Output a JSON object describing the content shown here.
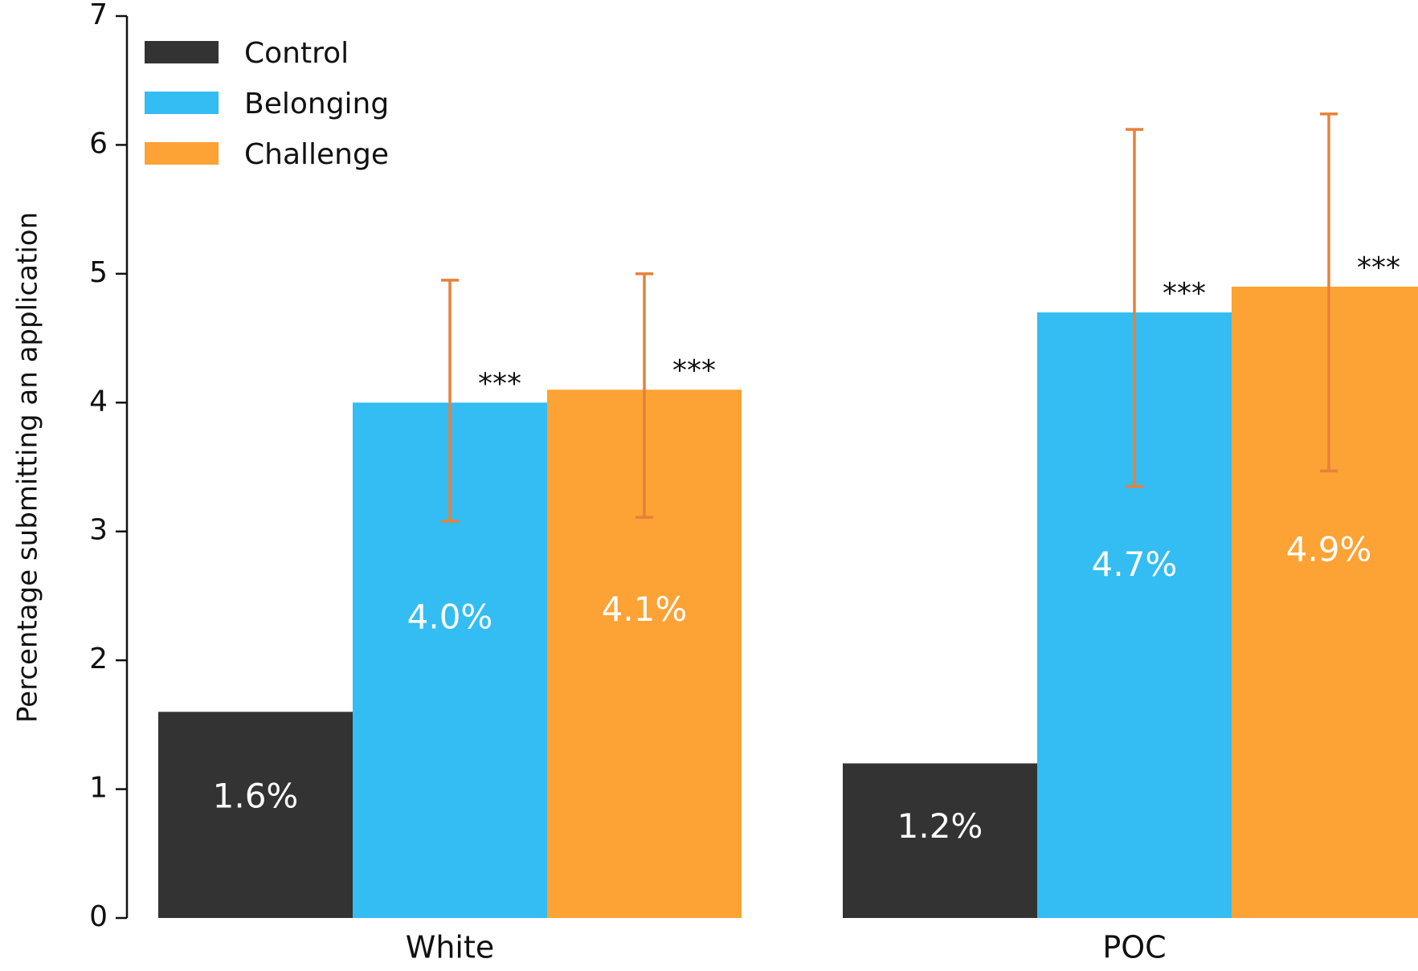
{
  "chart_data": {
    "type": "bar",
    "y_label": "Percentage submitting an application",
    "categories": [
      "White",
      "POC"
    ],
    "series": [
      {
        "name": "Control",
        "color": "#333333",
        "values": [
          1.6,
          1.2
        ],
        "value_labels": [
          "1.6%",
          "1.2%"
        ]
      },
      {
        "name": "Belonging",
        "color": "#33bdf2",
        "values": [
          4.0,
          4.7
        ],
        "value_labels": [
          "4.0%",
          "4.7%"
        ],
        "error_low": [
          3.08,
          3.35
        ],
        "error_high": [
          4.95,
          6.12
        ],
        "annotations": [
          "***",
          "***"
        ]
      },
      {
        "name": "Challenge",
        "color": "#fda234",
        "values": [
          4.1,
          4.9
        ],
        "value_labels": [
          "4.1%",
          "4.9%"
        ],
        "error_low": [
          3.11,
          3.47
        ],
        "error_high": [
          5.0,
          6.24
        ],
        "annotations": [
          "***",
          "***"
        ]
      }
    ],
    "error_color": "#e8803a",
    "ylim": [
      0,
      7
    ],
    "yticks": [
      0,
      1,
      2,
      3,
      4,
      5,
      6,
      7
    ],
    "grid": false,
    "legend": "upper left"
  }
}
